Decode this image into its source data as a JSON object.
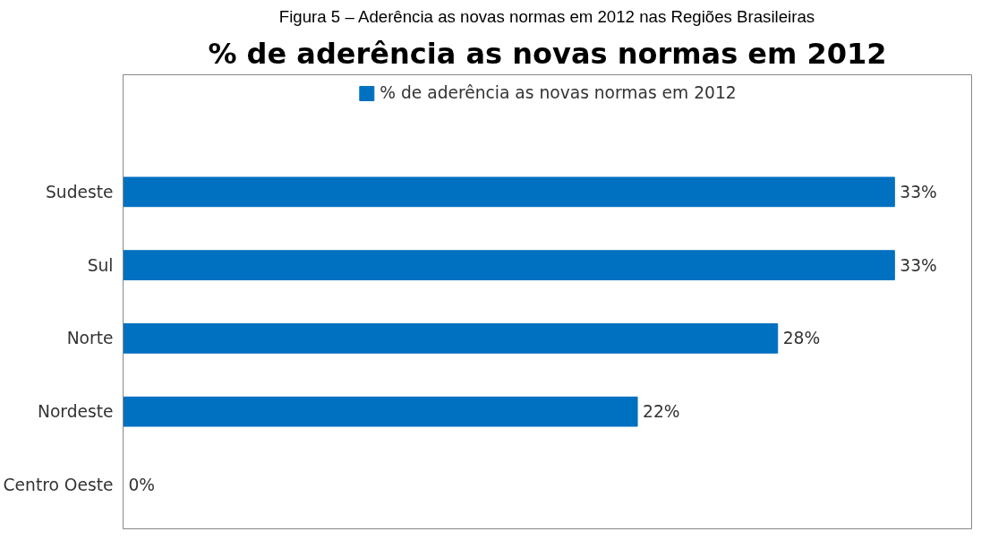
{
  "chart_data": {
    "type": "bar",
    "orientation": "horizontal",
    "title": "% de aderência as novas normas em 2012",
    "annotations": [
      "Figura 5 – Aderência as novas normas em 2012 nas Regiões Brasileiras"
    ],
    "categories": [
      "Sudeste",
      "Sul",
      "Norte",
      "Nordeste",
      "Centro Oeste"
    ],
    "series": [
      {
        "name": "% de aderência as novas normas em 2012",
        "color": "#0070c0",
        "values": [
          33,
          33,
          28,
          22,
          0
        ],
        "value_labels": [
          "33%",
          "33%",
          "28%",
          "22%",
          "0%"
        ]
      }
    ],
    "legend": "top"
  }
}
